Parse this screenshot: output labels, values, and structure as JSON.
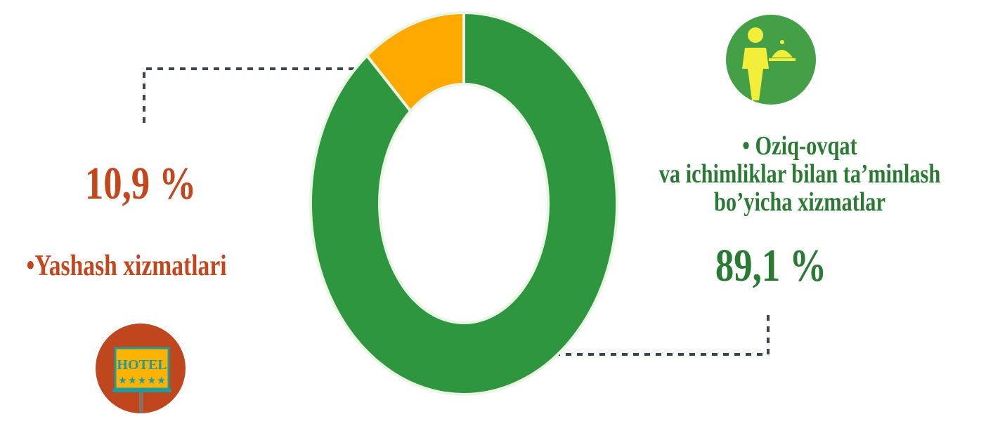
{
  "chart_data": {
    "type": "pie",
    "donut": true,
    "categories": [
      "•Yashash xizmatlari",
      "• Oziq-ovqat\nva ichimliklar bilan ta’minlash\nbo’yicha xizmatlar"
    ],
    "values": [
      10.9,
      89.1
    ],
    "value_labels": [
      "10,9 %",
      "89,1 %"
    ],
    "colors": [
      "#ffa800",
      "#2e963e"
    ],
    "label_colors": [
      "#c4461c",
      "#2a7a34"
    ]
  },
  "hotel_icon_text": "HOTEL"
}
